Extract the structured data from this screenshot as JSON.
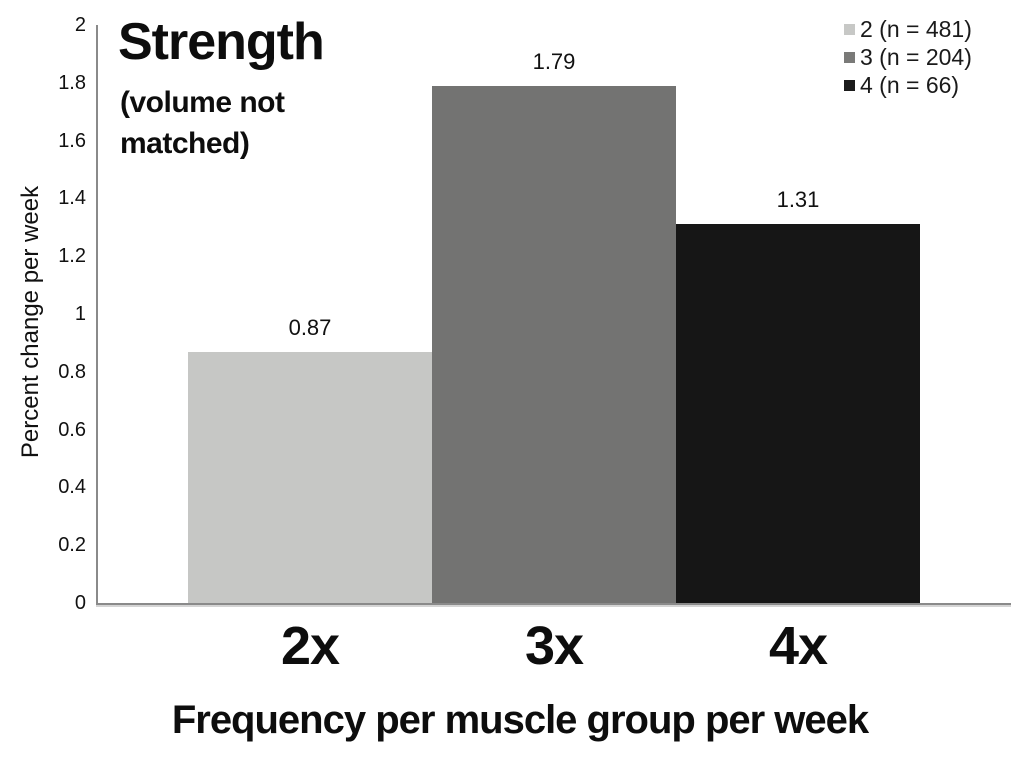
{
  "chart_data": {
    "type": "bar",
    "title": "Strength",
    "subtitle": "(volume not matched)",
    "xlabel": "Frequency per muscle group per week",
    "ylabel": "Percent change per week",
    "categories": [
      "2x",
      "3x",
      "4x"
    ],
    "values": [
      0.87,
      1.79,
      1.31
    ],
    "value_labels": [
      "0.87",
      "1.79",
      "1.31"
    ],
    "bar_colors": [
      "#c6c7c5",
      "#737372",
      "#161616"
    ],
    "ylim": [
      0,
      2
    ],
    "ytick_labels": [
      "0",
      "0.2",
      "0.4",
      "0.6",
      "0.8",
      "1",
      "1.2",
      "1.4",
      "1.6",
      "1.8",
      "2"
    ],
    "yticks": [
      0,
      0.2,
      0.4,
      0.6,
      0.8,
      1,
      1.2,
      1.4,
      1.6,
      1.8,
      2
    ],
    "grid": false,
    "legend": {
      "position": "top-right",
      "entries": [
        {
          "label": "2 (n = 481)",
          "color": "#c7c8c6"
        },
        {
          "label": "3 (n = 204)",
          "color": "#7a7a78"
        },
        {
          "label": "4 (n = 66)",
          "color": "#1b1b1b"
        }
      ]
    },
    "axis_color": "#8a8a8a",
    "background": "#ffffff"
  }
}
